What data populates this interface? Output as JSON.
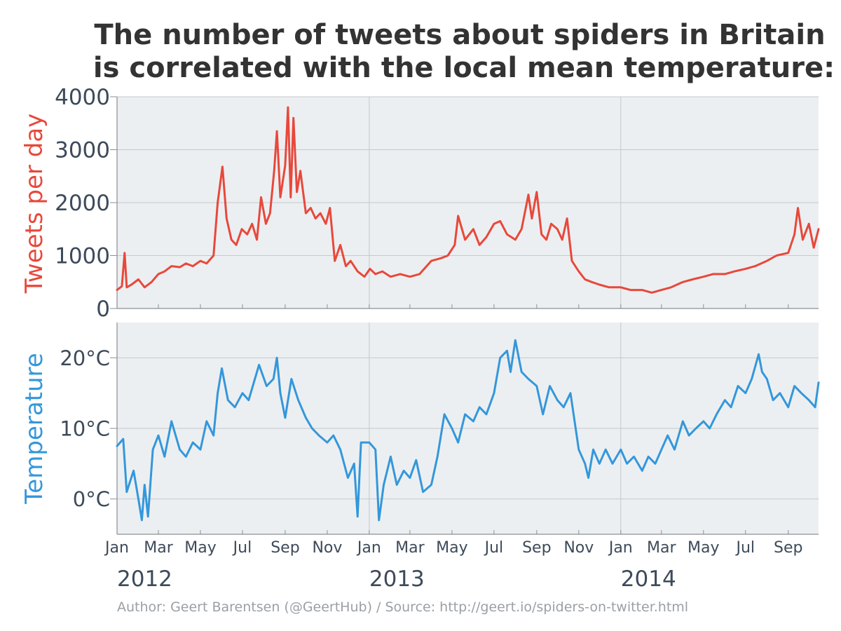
{
  "title_lines": [
    "The number of tweets about spiders in Britain",
    "is correlated with the local mean temperature:"
  ],
  "credit": "Author: Geert Barentsen (@GeertHub) / Source: http://geert.io/spiders-on-twitter.html",
  "colors": {
    "tweets": "#e8483b",
    "temperature": "#3497db",
    "plot_bg": "#eceff1",
    "grid": "#c5c9cc",
    "axis": "#8a9096",
    "text": "#3d4a5a",
    "title": "#333333",
    "credit": "#9aa0a6"
  },
  "chart_data": [
    {
      "type": "line",
      "ylabel": "Tweets per day",
      "ylim": [
        0,
        4000
      ],
      "yticks": [
        0,
        1000,
        2000,
        3000,
        4000
      ],
      "ytick_labels": [
        "0",
        "1000",
        "2000",
        "3000",
        "4000"
      ],
      "x_range": [
        "2012-01-01",
        "2014-10-15"
      ],
      "grid": true,
      "series": [
        {
          "points": [
            [
              "2012-01-01",
              350
            ],
            [
              "2012-01-08",
              420
            ],
            [
              "2012-01-12",
              1050
            ],
            [
              "2012-01-15",
              400
            ],
            [
              "2012-01-22",
              450
            ],
            [
              "2012-02-01",
              550
            ],
            [
              "2012-02-10",
              400
            ],
            [
              "2012-02-20",
              500
            ],
            [
              "2012-03-01",
              650
            ],
            [
              "2012-03-10",
              700
            ],
            [
              "2012-03-20",
              800
            ],
            [
              "2012-04-01",
              780
            ],
            [
              "2012-04-10",
              850
            ],
            [
              "2012-04-20",
              800
            ],
            [
              "2012-05-01",
              900
            ],
            [
              "2012-05-10",
              850
            ],
            [
              "2012-05-20",
              1000
            ],
            [
              "2012-05-26",
              2000
            ],
            [
              "2012-06-02",
              2680
            ],
            [
              "2012-06-08",
              1700
            ],
            [
              "2012-06-15",
              1300
            ],
            [
              "2012-06-22",
              1200
            ],
            [
              "2012-06-30",
              1500
            ],
            [
              "2012-07-08",
              1400
            ],
            [
              "2012-07-15",
              1600
            ],
            [
              "2012-07-22",
              1300
            ],
            [
              "2012-07-28",
              2100
            ],
            [
              "2012-08-04",
              1600
            ],
            [
              "2012-08-10",
              1800
            ],
            [
              "2012-08-16",
              2600
            ],
            [
              "2012-08-20",
              3350
            ],
            [
              "2012-08-25",
              2100
            ],
            [
              "2012-09-01",
              2700
            ],
            [
              "2012-09-05",
              3800
            ],
            [
              "2012-09-09",
              2100
            ],
            [
              "2012-09-13",
              3600
            ],
            [
              "2012-09-18",
              2200
            ],
            [
              "2012-09-23",
              2600
            ],
            [
              "2012-10-01",
              1800
            ],
            [
              "2012-10-08",
              1900
            ],
            [
              "2012-10-15",
              1700
            ],
            [
              "2012-10-22",
              1800
            ],
            [
              "2012-10-30",
              1600
            ],
            [
              "2012-11-05",
              1900
            ],
            [
              "2012-11-12",
              900
            ],
            [
              "2012-11-20",
              1200
            ],
            [
              "2012-11-28",
              800
            ],
            [
              "2012-12-05",
              900
            ],
            [
              "2012-12-15",
              700
            ],
            [
              "2012-12-25",
              600
            ],
            [
              "2013-01-02",
              750
            ],
            [
              "2013-01-10",
              650
            ],
            [
              "2013-01-20",
              700
            ],
            [
              "2013-02-01",
              600
            ],
            [
              "2013-02-15",
              650
            ],
            [
              "2013-03-01",
              600
            ],
            [
              "2013-03-15",
              650
            ],
            [
              "2013-04-01",
              900
            ],
            [
              "2013-04-15",
              950
            ],
            [
              "2013-04-25",
              1000
            ],
            [
              "2013-05-05",
              1200
            ],
            [
              "2013-05-10",
              1750
            ],
            [
              "2013-05-20",
              1300
            ],
            [
              "2013-06-01",
              1500
            ],
            [
              "2013-06-10",
              1200
            ],
            [
              "2013-06-20",
              1350
            ],
            [
              "2013-07-01",
              1600
            ],
            [
              "2013-07-10",
              1650
            ],
            [
              "2013-07-20",
              1400
            ],
            [
              "2013-08-01",
              1300
            ],
            [
              "2013-08-10",
              1500
            ],
            [
              "2013-08-20",
              2150
            ],
            [
              "2013-08-25",
              1700
            ],
            [
              "2013-09-01",
              2200
            ],
            [
              "2013-09-08",
              1400
            ],
            [
              "2013-09-15",
              1300
            ],
            [
              "2013-09-22",
              1600
            ],
            [
              "2013-10-01",
              1500
            ],
            [
              "2013-10-08",
              1300
            ],
            [
              "2013-10-15",
              1700
            ],
            [
              "2013-10-22",
              900
            ],
            [
              "2013-11-01",
              700
            ],
            [
              "2013-11-10",
              550
            ],
            [
              "2013-11-20",
              500
            ],
            [
              "2013-12-01",
              450
            ],
            [
              "2013-12-15",
              400
            ],
            [
              "2014-01-01",
              400
            ],
            [
              "2014-01-15",
              350
            ],
            [
              "2014-02-01",
              350
            ],
            [
              "2014-02-15",
              300
            ],
            [
              "2014-03-01",
              350
            ],
            [
              "2014-03-15",
              400
            ],
            [
              "2014-04-01",
              500
            ],
            [
              "2014-04-15",
              550
            ],
            [
              "2014-05-01",
              600
            ],
            [
              "2014-05-15",
              650
            ],
            [
              "2014-06-01",
              650
            ],
            [
              "2014-06-15",
              700
            ],
            [
              "2014-07-01",
              750
            ],
            [
              "2014-07-15",
              800
            ],
            [
              "2014-08-01",
              900
            ],
            [
              "2014-08-15",
              1000
            ],
            [
              "2014-09-01",
              1050
            ],
            [
              "2014-09-10",
              1400
            ],
            [
              "2014-09-15",
              1900
            ],
            [
              "2014-09-22",
              1300
            ],
            [
              "2014-10-01",
              1600
            ],
            [
              "2014-10-08",
              1150
            ],
            [
              "2014-10-15",
              1500
            ]
          ]
        }
      ]
    },
    {
      "type": "line",
      "ylabel": "Temperature",
      "ylim": [
        -5,
        25
      ],
      "yticks": [
        0,
        10,
        20
      ],
      "ytick_labels": [
        "0°C",
        "10°C",
        "20°C"
      ],
      "x_range": [
        "2012-01-01",
        "2014-10-15"
      ],
      "xticks": [
        [
          "2012-01-01",
          "Jan"
        ],
        [
          "2012-03-01",
          "Mar"
        ],
        [
          "2012-05-01",
          "May"
        ],
        [
          "2012-07-01",
          "Jul"
        ],
        [
          "2012-09-01",
          "Sep"
        ],
        [
          "2012-11-01",
          "Nov"
        ],
        [
          "2013-01-01",
          "Jan"
        ],
        [
          "2013-03-01",
          "Mar"
        ],
        [
          "2013-05-01",
          "May"
        ],
        [
          "2013-07-01",
          "Jul"
        ],
        [
          "2013-09-01",
          "Sep"
        ],
        [
          "2013-11-01",
          "Nov"
        ],
        [
          "2014-01-01",
          "Jan"
        ],
        [
          "2014-03-01",
          "Mar"
        ],
        [
          "2014-05-01",
          "May"
        ],
        [
          "2014-07-01",
          "Jul"
        ],
        [
          "2014-09-01",
          "Sep"
        ]
      ],
      "year_labels": [
        [
          "2012-01-01",
          "2012"
        ],
        [
          "2013-01-01",
          "2013"
        ],
        [
          "2014-01-01",
          "2014"
        ]
      ],
      "grid": true,
      "series": [
        {
          "points": [
            [
              "2012-01-01",
              7.5
            ],
            [
              "2012-01-10",
              8.5
            ],
            [
              "2012-01-15",
              1.0
            ],
            [
              "2012-01-25",
              4.0
            ],
            [
              "2012-02-01",
              0.0
            ],
            [
              "2012-02-06",
              -3.0
            ],
            [
              "2012-02-10",
              2.0
            ],
            [
              "2012-02-15",
              -2.5
            ],
            [
              "2012-02-22",
              7.0
            ],
            [
              "2012-03-01",
              9.0
            ],
            [
              "2012-03-10",
              6.0
            ],
            [
              "2012-03-20",
              11.0
            ],
            [
              "2012-04-01",
              7.0
            ],
            [
              "2012-04-10",
              6.0
            ],
            [
              "2012-04-20",
              8.0
            ],
            [
              "2012-05-01",
              7.0
            ],
            [
              "2012-05-10",
              11.0
            ],
            [
              "2012-05-20",
              9.0
            ],
            [
              "2012-05-26",
              15.0
            ],
            [
              "2012-06-01",
              18.5
            ],
            [
              "2012-06-10",
              14.0
            ],
            [
              "2012-06-20",
              13.0
            ],
            [
              "2012-07-01",
              15.0
            ],
            [
              "2012-07-10",
              14.0
            ],
            [
              "2012-07-25",
              19.0
            ],
            [
              "2012-08-05",
              16.0
            ],
            [
              "2012-08-15",
              17.0
            ],
            [
              "2012-08-20",
              20.0
            ],
            [
              "2012-08-25",
              15.0
            ],
            [
              "2012-09-01",
              11.5
            ],
            [
              "2012-09-10",
              17.0
            ],
            [
              "2012-09-20",
              14.0
            ],
            [
              "2012-10-01",
              11.5
            ],
            [
              "2012-10-10",
              10.0
            ],
            [
              "2012-10-20",
              9.0
            ],
            [
              "2012-11-01",
              8.0
            ],
            [
              "2012-11-10",
              9.0
            ],
            [
              "2012-11-20",
              7.0
            ],
            [
              "2012-12-01",
              3.0
            ],
            [
              "2012-12-10",
              5.0
            ],
            [
              "2012-12-15",
              -2.5
            ],
            [
              "2012-12-20",
              8.0
            ],
            [
              "2013-01-01",
              8.0
            ],
            [
              "2013-01-10",
              7.0
            ],
            [
              "2013-01-15",
              -3.0
            ],
            [
              "2013-01-22",
              2.0
            ],
            [
              "2013-02-01",
              6.0
            ],
            [
              "2013-02-10",
              2.0
            ],
            [
              "2013-02-20",
              4.0
            ],
            [
              "2013-03-01",
              3.0
            ],
            [
              "2013-03-10",
              5.5
            ],
            [
              "2013-03-20",
              1.0
            ],
            [
              "2013-04-01",
              2.0
            ],
            [
              "2013-04-10",
              6.0
            ],
            [
              "2013-04-20",
              12.0
            ],
            [
              "2013-05-01",
              10.0
            ],
            [
              "2013-05-10",
              8.0
            ],
            [
              "2013-05-20",
              12.0
            ],
            [
              "2013-06-01",
              11.0
            ],
            [
              "2013-06-10",
              13.0
            ],
            [
              "2013-06-20",
              12.0
            ],
            [
              "2013-07-01",
              15.0
            ],
            [
              "2013-07-10",
              20.0
            ],
            [
              "2013-07-20",
              21.0
            ],
            [
              "2013-07-25",
              18.0
            ],
            [
              "2013-08-01",
              22.5
            ],
            [
              "2013-08-10",
              18.0
            ],
            [
              "2013-08-20",
              17.0
            ],
            [
              "2013-09-01",
              16.0
            ],
            [
              "2013-09-10",
              12.0
            ],
            [
              "2013-09-20",
              16.0
            ],
            [
              "2013-10-01",
              14.0
            ],
            [
              "2013-10-10",
              13.0
            ],
            [
              "2013-10-20",
              15.0
            ],
            [
              "2013-11-01",
              7.0
            ],
            [
              "2013-11-10",
              5.0
            ],
            [
              "2013-11-15",
              3.0
            ],
            [
              "2013-11-22",
              7.0
            ],
            [
              "2013-12-01",
              5.0
            ],
            [
              "2013-12-10",
              7.0
            ],
            [
              "2013-12-20",
              5.0
            ],
            [
              "2014-01-01",
              7.0
            ],
            [
              "2014-01-10",
              5.0
            ],
            [
              "2014-01-20",
              6.0
            ],
            [
              "2014-02-01",
              4.0
            ],
            [
              "2014-02-10",
              6.0
            ],
            [
              "2014-02-20",
              5.0
            ],
            [
              "2014-03-01",
              7.0
            ],
            [
              "2014-03-10",
              9.0
            ],
            [
              "2014-03-20",
              7.0
            ],
            [
              "2014-04-01",
              11.0
            ],
            [
              "2014-04-10",
              9.0
            ],
            [
              "2014-04-20",
              10.0
            ],
            [
              "2014-05-01",
              11.0
            ],
            [
              "2014-05-10",
              10.0
            ],
            [
              "2014-05-20",
              12.0
            ],
            [
              "2014-06-01",
              14.0
            ],
            [
              "2014-06-10",
              13.0
            ],
            [
              "2014-06-20",
              16.0
            ],
            [
              "2014-07-01",
              15.0
            ],
            [
              "2014-07-10",
              17.0
            ],
            [
              "2014-07-20",
              20.5
            ],
            [
              "2014-07-25",
              18.0
            ],
            [
              "2014-08-01",
              17.0
            ],
            [
              "2014-08-10",
              14.0
            ],
            [
              "2014-08-20",
              15.0
            ],
            [
              "2014-09-01",
              13.0
            ],
            [
              "2014-09-10",
              16.0
            ],
            [
              "2014-09-20",
              15.0
            ],
            [
              "2014-10-01",
              14.0
            ],
            [
              "2014-10-10",
              13.0
            ],
            [
              "2014-10-15",
              16.5
            ]
          ]
        }
      ]
    }
  ]
}
